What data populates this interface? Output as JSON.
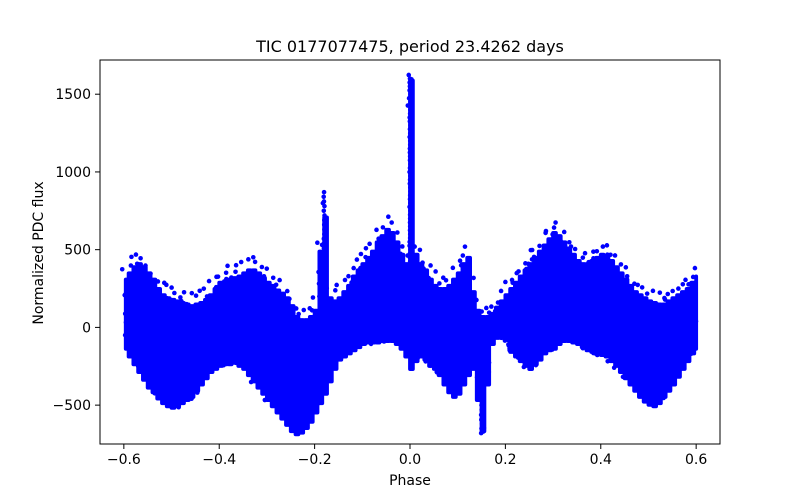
{
  "chart_data": {
    "type": "scatter",
    "title": "TIC 0177077475, period 23.4262 days",
    "xlabel": "Phase",
    "ylabel": "Normalized PDC flux",
    "xlim": [
      -0.65,
      0.65
    ],
    "ylim": [
      -750,
      1720
    ],
    "xticks": [
      -0.6,
      -0.4,
      -0.2,
      0.0,
      0.2,
      0.4,
      0.6
    ],
    "xtick_labels": [
      "−0.6",
      "−0.4",
      "−0.2",
      "0.0",
      "0.2",
      "0.4",
      "0.6"
    ],
    "yticks": [
      -500,
      0,
      500,
      1000,
      1500
    ],
    "ytick_labels": [
      "−500",
      "0",
      "500",
      "1000",
      "1500"
    ],
    "grid": false,
    "legend": "none",
    "marker_color": "#0000ff",
    "series": [
      {
        "x": [
          -0.6,
          -0.59,
          -0.58,
          -0.57,
          -0.56,
          -0.55,
          -0.54,
          -0.53,
          -0.52,
          -0.51,
          -0.5,
          -0.49,
          -0.48,
          -0.47,
          -0.46,
          -0.45,
          -0.44,
          -0.43,
          -0.42,
          -0.41,
          -0.4,
          -0.39,
          -0.38,
          -0.37,
          -0.36,
          -0.35,
          -0.34,
          -0.33,
          -0.32,
          -0.31,
          -0.3,
          -0.29,
          -0.28,
          -0.27,
          -0.26,
          -0.25,
          -0.24,
          -0.23,
          -0.22,
          -0.21,
          -0.2,
          -0.19,
          -0.18,
          -0.17,
          -0.16,
          -0.15,
          -0.14,
          -0.13,
          -0.12,
          -0.11,
          -0.1,
          -0.09,
          -0.08,
          -0.07,
          -0.06,
          -0.05,
          -0.04,
          -0.03,
          -0.02,
          -0.01,
          0.0,
          0.01,
          0.02,
          0.03,
          0.04,
          0.05,
          0.06,
          0.07,
          0.08,
          0.09,
          0.1,
          0.11,
          0.12,
          0.13,
          0.14,
          0.15,
          0.16,
          0.17,
          0.18,
          0.19,
          0.2,
          0.21,
          0.22,
          0.23,
          0.24,
          0.25,
          0.26,
          0.27,
          0.28,
          0.29,
          0.3,
          0.31,
          0.32,
          0.33,
          0.34,
          0.35,
          0.36,
          0.37,
          0.38,
          0.39,
          0.4,
          0.41,
          0.42,
          0.43,
          0.44,
          0.45,
          0.46,
          0.47,
          0.48,
          0.49,
          0.5,
          0.51,
          0.52,
          0.53,
          0.54,
          0.55,
          0.56,
          0.57,
          0.58,
          0.59,
          0.6
        ],
        "ymin": [
          -150,
          -200,
          -250,
          -300,
          -350,
          -400,
          -430,
          -470,
          -500,
          -520,
          -530,
          -520,
          -500,
          -480,
          -460,
          -420,
          -380,
          -340,
          -300,
          -280,
          -260,
          -250,
          -250,
          -240,
          -260,
          -280,
          -320,
          -360,
          -400,
          -440,
          -480,
          -520,
          -560,
          -600,
          -640,
          -680,
          -700,
          -690,
          -660,
          -620,
          -560,
          -500,
          -440,
          -360,
          -280,
          -220,
          -200,
          -180,
          -160,
          -140,
          -120,
          -110,
          -110,
          -110,
          -100,
          -100,
          -100,
          -120,
          -150,
          -200,
          -280,
          -230,
          -200,
          -220,
          -260,
          -280,
          -320,
          -380,
          -430,
          -460,
          -440,
          -380,
          -320,
          -280,
          -480,
          -680,
          -380,
          -120,
          -80,
          -80,
          -90,
          -170,
          -200,
          -230,
          -260,
          -280,
          -250,
          -220,
          -180,
          -160,
          -150,
          -120,
          -100,
          -100,
          -110,
          -120,
          -140,
          -160,
          -170,
          -180,
          -190,
          -200,
          -230,
          -260,
          -300,
          -340,
          -380,
          -420,
          -460,
          -490,
          -510,
          -520,
          -500,
          -460,
          -420,
          -380,
          -330,
          -280,
          -230,
          -180,
          -150
        ],
        "ymax": [
          320,
          360,
          400,
          420,
          400,
          360,
          320,
          260,
          220,
          200,
          190,
          180,
          170,
          160,
          150,
          160,
          170,
          190,
          220,
          260,
          300,
          310,
          320,
          330,
          340,
          360,
          380,
          380,
          360,
          330,
          300,
          280,
          250,
          230,
          200,
          150,
          80,
          60,
          60,
          80,
          120,
          500,
          720,
          200,
          180,
          200,
          240,
          280,
          340,
          380,
          420,
          460,
          500,
          560,
          600,
          640,
          620,
          560,
          480,
          420,
          1600,
          480,
          420,
          380,
          320,
          280,
          260,
          260,
          280,
          320,
          360,
          420,
          460,
          240,
          120,
          80,
          80,
          100,
          140,
          180,
          220,
          260,
          300,
          340,
          380,
          420,
          460,
          500,
          540,
          580,
          620,
          600,
          560,
          520,
          480,
          440,
          420,
          420,
          440,
          460,
          480,
          470,
          440,
          400,
          360,
          320,
          280,
          240,
          220,
          200,
          180,
          170,
          160,
          160,
          180,
          200,
          220,
          240,
          260,
          300,
          340
        ]
      }
    ]
  }
}
